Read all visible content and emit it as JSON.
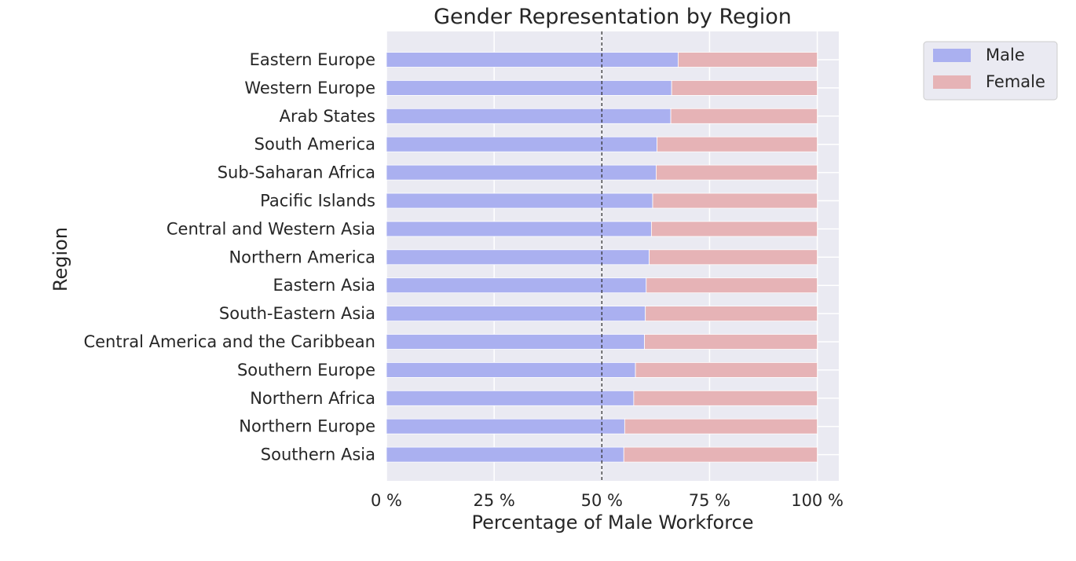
{
  "chart_data": {
    "type": "bar",
    "orientation": "horizontal",
    "stacked": true,
    "title": "Gender Representation by Region",
    "xlabel": "Percentage of Male Workforce",
    "ylabel": "Region",
    "xlim": [
      0,
      105
    ],
    "x_ticks": [
      0,
      25,
      50,
      75,
      100
    ],
    "x_tick_labels": [
      "0 %",
      "25 %",
      "50 %",
      "75 %",
      "100 %"
    ],
    "reference_line": {
      "x": 50,
      "style": "dashed"
    },
    "categories": [
      "Eastern Europe",
      "Western Europe",
      "Arab States",
      "South America",
      "Sub-Saharan Africa",
      "Pacific Islands",
      "Central and Western Asia",
      "Northern America",
      "Eastern Asia",
      "South-Eastern Asia",
      "Central America and the Caribbean",
      "Southern Europe",
      "Northern Africa",
      "Northern Europe",
      "Southern Asia"
    ],
    "series": [
      {
        "name": "Male",
        "color": "#aab0f0",
        "values": [
          67.7,
          66.2,
          66.0,
          62.8,
          62.6,
          61.8,
          61.5,
          61.0,
          60.3,
          60.1,
          59.9,
          57.8,
          57.4,
          55.3,
          55.1
        ]
      },
      {
        "name": "Female",
        "color": "#e6b3b6",
        "values": [
          32.3,
          33.8,
          34.0,
          37.2,
          37.4,
          38.2,
          38.5,
          39.0,
          39.7,
          39.9,
          40.1,
          42.2,
          42.6,
          44.7,
          44.9
        ]
      }
    ],
    "legend": {
      "position": "outside-top-right",
      "entries": [
        "Male",
        "Female"
      ]
    },
    "grid": true,
    "background": "#eaeaf2"
  }
}
